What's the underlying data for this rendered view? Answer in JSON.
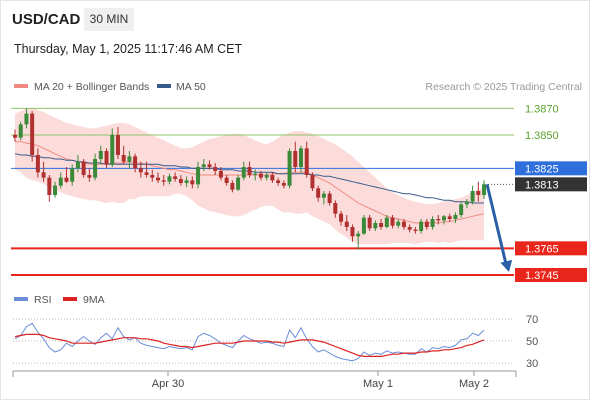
{
  "header": {
    "symbol": "USD/CAD",
    "timeframe": "30 MIN",
    "datetime": "Thursday, May 1, 2025 11:17:46 AM CET"
  },
  "colors": {
    "support": "#e8261c",
    "resistance": "#2f6fdb",
    "target_line": "#8cc36a",
    "target_text": "#5aa12e",
    "price_box": "#333333",
    "candle_up": "#3a8a3a",
    "candle_down": "#b03030",
    "band_fill": "#fbd6d3",
    "ma20": "#f08a80",
    "ma50": "#365a8a",
    "rsi": "#6a8ed8",
    "rsi_ma": "#dd2222",
    "arrow": "#2a5fa8"
  },
  "chart_data": [
    {
      "type": "candlestick",
      "title": "USD/CAD",
      "legend": [
        {
          "name": "MA 20 + Bollinger Bands",
          "color": "#f08a80"
        },
        {
          "name": "MA 50",
          "color": "#365a8a"
        }
      ],
      "copyright": "Research © 2025 Trading Central",
      "ylim": [
        1.3733,
        1.3883
      ],
      "levels": [
        {
          "value": "1.3870",
          "kind": "target"
        },
        {
          "value": "1.3850",
          "kind": "target"
        },
        {
          "value": "1.3825",
          "kind": "resistance"
        },
        {
          "value": "1.3813",
          "kind": "last"
        },
        {
          "value": "1.3765",
          "kind": "support"
        },
        {
          "value": "1.3745",
          "kind": "support"
        }
      ],
      "x_ticks": [
        "Apr 30",
        "May 1",
        "May 2"
      ],
      "candles": [
        [
          1.385,
          1.3854,
          1.3845,
          1.3848
        ],
        [
          1.3848,
          1.386,
          1.3846,
          1.3858
        ],
        [
          1.3858,
          1.387,
          1.3855,
          1.3866
        ],
        [
          1.3866,
          1.3868,
          1.383,
          1.3835
        ],
        [
          1.3835,
          1.384,
          1.3818,
          1.3822
        ],
        [
          1.3822,
          1.383,
          1.3815,
          1.3818
        ],
        [
          1.3818,
          1.382,
          1.38,
          1.3805
        ],
        [
          1.3805,
          1.3815,
          1.3803,
          1.3812
        ],
        [
          1.3812,
          1.3822,
          1.381,
          1.3818
        ],
        [
          1.3818,
          1.3826,
          1.3814,
          1.3815
        ],
        [
          1.3815,
          1.3828,
          1.3812,
          1.3825
        ],
        [
          1.3825,
          1.3835,
          1.3822,
          1.383
        ],
        [
          1.383,
          1.3832,
          1.3818,
          1.382
        ],
        [
          1.382,
          1.3825,
          1.3815,
          1.3818
        ],
        [
          1.3818,
          1.3836,
          1.3816,
          1.3832
        ],
        [
          1.3832,
          1.3842,
          1.3828,
          1.3838
        ],
        [
          1.3838,
          1.384,
          1.3825,
          1.3828
        ],
        [
          1.3828,
          1.3855,
          1.3826,
          1.385
        ],
        [
          1.385,
          1.3856,
          1.3832,
          1.3835
        ],
        [
          1.3835,
          1.3842,
          1.3828,
          1.383
        ],
        [
          1.383,
          1.3838,
          1.3825,
          1.3834
        ],
        [
          1.3834,
          1.3836,
          1.3822,
          1.3825
        ],
        [
          1.3825,
          1.383,
          1.3818,
          1.3822
        ],
        [
          1.3822,
          1.383,
          1.3818,
          1.382
        ],
        [
          1.382,
          1.3824,
          1.3815,
          1.3818
        ],
        [
          1.3818,
          1.3822,
          1.3814,
          1.3816
        ],
        [
          1.3816,
          1.382,
          1.3812,
          1.3815
        ],
        [
          1.3815,
          1.3821,
          1.3813,
          1.3819
        ],
        [
          1.3819,
          1.3822,
          1.3815,
          1.3817
        ],
        [
          1.3817,
          1.382,
          1.3812,
          1.3814
        ],
        [
          1.3814,
          1.3819,
          1.3811,
          1.3816
        ],
        [
          1.3816,
          1.3819,
          1.381,
          1.3813
        ],
        [
          1.3813,
          1.383,
          1.381,
          1.3826
        ],
        [
          1.3826,
          1.3832,
          1.3823,
          1.3828
        ],
        [
          1.3828,
          1.3831,
          1.3824,
          1.3826
        ],
        [
          1.3826,
          1.3829,
          1.382,
          1.3823
        ],
        [
          1.3823,
          1.3826,
          1.3816,
          1.3818
        ],
        [
          1.3818,
          1.382,
          1.3812,
          1.3814
        ],
        [
          1.3814,
          1.3816,
          1.3807,
          1.3809
        ],
        [
          1.3809,
          1.382,
          1.3808,
          1.3818
        ],
        [
          1.3818,
          1.383,
          1.3816,
          1.3826
        ],
        [
          1.3826,
          1.383,
          1.3818,
          1.382
        ],
        [
          1.382,
          1.3824,
          1.3816,
          1.3821
        ],
        [
          1.3821,
          1.3823,
          1.3816,
          1.3818
        ],
        [
          1.3818,
          1.3822,
          1.3816,
          1.382
        ],
        [
          1.382,
          1.3822,
          1.3814,
          1.3816
        ],
        [
          1.3816,
          1.3818,
          1.3812,
          1.3814
        ],
        [
          1.3814,
          1.3816,
          1.381,
          1.3812
        ],
        [
          1.3812,
          1.384,
          1.381,
          1.3838
        ],
        [
          1.3838,
          1.3845,
          1.3822,
          1.3826
        ],
        [
          1.3826,
          1.3842,
          1.3822,
          1.384
        ],
        [
          1.384,
          1.3845,
          1.3818,
          1.382
        ],
        [
          1.382,
          1.3822,
          1.3808,
          1.381
        ],
        [
          1.381,
          1.3812,
          1.38,
          1.3803
        ],
        [
          1.3803,
          1.3808,
          1.3798,
          1.3806
        ],
        [
          1.3806,
          1.3808,
          1.3797,
          1.3799
        ],
        [
          1.3799,
          1.3801,
          1.3788,
          1.3791
        ],
        [
          1.3791,
          1.3793,
          1.3782,
          1.3785
        ],
        [
          1.3785,
          1.379,
          1.3778,
          1.3781
        ],
        [
          1.3781,
          1.3783,
          1.377,
          1.3774
        ],
        [
          1.3774,
          1.3778,
          1.3764,
          1.3776
        ],
        [
          1.3776,
          1.379,
          1.3775,
          1.3788
        ],
        [
          1.3788,
          1.379,
          1.3778,
          1.378
        ],
        [
          1.378,
          1.3786,
          1.3778,
          1.3784
        ],
        [
          1.3784,
          1.3787,
          1.3779,
          1.3781
        ],
        [
          1.3781,
          1.379,
          1.378,
          1.3788
        ],
        [
          1.3788,
          1.379,
          1.378,
          1.3782
        ],
        [
          1.3782,
          1.3787,
          1.378,
          1.3785
        ],
        [
          1.3785,
          1.3787,
          1.3779,
          1.3781
        ],
        [
          1.3781,
          1.3783,
          1.3777,
          1.3779
        ],
        [
          1.3779,
          1.3781,
          1.3776,
          1.3778
        ],
        [
          1.3778,
          1.3787,
          1.3776,
          1.3785
        ],
        [
          1.3785,
          1.3787,
          1.3779,
          1.3781
        ],
        [
          1.3781,
          1.3789,
          1.3779,
          1.3787
        ],
        [
          1.3787,
          1.379,
          1.3783,
          1.3786
        ],
        [
          1.3786,
          1.379,
          1.3783,
          1.3789
        ],
        [
          1.3789,
          1.3791,
          1.3785,
          1.3787
        ],
        [
          1.3787,
          1.3792,
          1.3784,
          1.379
        ],
        [
          1.379,
          1.38,
          1.3788,
          1.3798
        ],
        [
          1.3798,
          1.3802,
          1.3795,
          1.38
        ],
        [
          1.38,
          1.3812,
          1.3798,
          1.3808
        ],
        [
          1.3808,
          1.3815,
          1.38,
          1.3805
        ],
        [
          1.3805,
          1.3816,
          1.3802,
          1.3813
        ]
      ],
      "ma20": [
        1.3845,
        1.3845,
        1.3844,
        1.3843,
        1.3842,
        1.384,
        1.3838,
        1.3836,
        1.3834,
        1.3832,
        1.3831,
        1.383,
        1.3829,
        1.3828,
        1.3828,
        1.3828,
        1.3828,
        1.3829,
        1.3829,
        1.3829,
        1.383,
        1.3829,
        1.3829,
        1.3828,
        1.3827,
        1.3826,
        1.3825,
        1.3824,
        1.3824,
        1.3823,
        1.3822,
        1.3821,
        1.382,
        1.382,
        1.382,
        1.382,
        1.382,
        1.382,
        1.382,
        1.382,
        1.382,
        1.382,
        1.382,
        1.382,
        1.382,
        1.3821,
        1.3821,
        1.3821,
        1.3822,
        1.3822,
        1.3822,
        1.3822,
        1.382,
        1.3818,
        1.3816,
        1.3814,
        1.3811,
        1.3808,
        1.3805,
        1.3802,
        1.3799,
        1.3797,
        1.3795,
        1.3793,
        1.3791,
        1.3789,
        1.3788,
        1.3787,
        1.3786,
        1.3785,
        1.3784,
        1.3784,
        1.3784,
        1.3784,
        1.3784,
        1.3785,
        1.3785,
        1.3786,
        1.3787,
        1.3788,
        1.3789,
        1.379,
        1.3791
      ],
      "upper_band": [
        1.3866,
        1.3868,
        1.387,
        1.387,
        1.3869,
        1.3867,
        1.3865,
        1.3863,
        1.3861,
        1.3859,
        1.3858,
        1.3857,
        1.3856,
        1.3855,
        1.3855,
        1.3856,
        1.3857,
        1.3858,
        1.3859,
        1.3859,
        1.3858,
        1.3856,
        1.3854,
        1.3852,
        1.385,
        1.3848,
        1.3846,
        1.3844,
        1.3842,
        1.384,
        1.384,
        1.3841,
        1.3843,
        1.3845,
        1.3847,
        1.3848,
        1.3849,
        1.385,
        1.3851,
        1.3851,
        1.385,
        1.3848,
        1.3846,
        1.3844,
        1.3843,
        1.3845,
        1.3848,
        1.385,
        1.3852,
        1.3853,
        1.3853,
        1.3852,
        1.3851,
        1.3849,
        1.3847,
        1.3845,
        1.3843,
        1.384,
        1.3837,
        1.3834,
        1.383,
        1.3826,
        1.3822,
        1.3818,
        1.3814,
        1.381,
        1.3807,
        1.3805,
        1.3803,
        1.3801,
        1.38,
        1.3799,
        1.3798,
        1.3798,
        1.3799,
        1.38,
        1.3801,
        1.3802,
        1.3803,
        1.3805,
        1.3807,
        1.3809,
        1.3811
      ],
      "lower_band": [
        1.3824,
        1.3822,
        1.3818,
        1.3816,
        1.3815,
        1.3813,
        1.3811,
        1.3809,
        1.3807,
        1.3805,
        1.3804,
        1.3803,
        1.3802,
        1.3801,
        1.3801,
        1.38,
        1.3799,
        1.38,
        1.3799,
        1.3799,
        1.3802,
        1.3802,
        1.3804,
        1.3804,
        1.3804,
        1.3804,
        1.3804,
        1.3804,
        1.3806,
        1.3806,
        1.3804,
        1.3801,
        1.3797,
        1.3795,
        1.3793,
        1.3792,
        1.3791,
        1.379,
        1.3789,
        1.3789,
        1.379,
        1.3792,
        1.3794,
        1.3796,
        1.3797,
        1.3797,
        1.3794,
        1.3792,
        1.3792,
        1.3791,
        1.3791,
        1.3792,
        1.3789,
        1.3787,
        1.3785,
        1.3783,
        1.3779,
        1.3776,
        1.3773,
        1.377,
        1.3768,
        1.3768,
        1.3768,
        1.3768,
        1.3768,
        1.3768,
        1.3769,
        1.3769,
        1.3769,
        1.3769,
        1.3768,
        1.3769,
        1.377,
        1.377,
        1.3769,
        1.377,
        1.3769,
        1.377,
        1.3771,
        1.3771,
        1.3771,
        1.3771,
        1.3771
      ],
      "ma50": [
        1.3836,
        1.3835,
        1.3835,
        1.3834,
        1.3834,
        1.3833,
        1.3833,
        1.3832,
        1.3832,
        1.3831,
        1.3831,
        1.383,
        1.383,
        1.3829,
        1.3829,
        1.3829,
        1.3828,
        1.3828,
        1.3828,
        1.3828,
        1.3828,
        1.3828,
        1.3828,
        1.3828,
        1.3828,
        1.3828,
        1.3827,
        1.3827,
        1.3827,
        1.3826,
        1.3826,
        1.3825,
        1.3825,
        1.3825,
        1.3825,
        1.3825,
        1.3824,
        1.3824,
        1.3824,
        1.3823,
        1.3823,
        1.3823,
        1.3822,
        1.3822,
        1.3822,
        1.3822,
        1.3821,
        1.3821,
        1.3821,
        1.3821,
        1.3821,
        1.3821,
        1.382,
        1.382,
        1.3819,
        1.3819,
        1.3818,
        1.3817,
        1.3816,
        1.3815,
        1.3814,
        1.3813,
        1.3812,
        1.3811,
        1.381,
        1.3809,
        1.3808,
        1.3807,
        1.3806,
        1.3806,
        1.3805,
        1.3804,
        1.3803,
        1.3803,
        1.3802,
        1.3801,
        1.3801,
        1.38,
        1.38,
        1.38,
        1.3799,
        1.3799,
        1.3799
      ]
    },
    {
      "type": "line",
      "legend": [
        {
          "name": "RSI",
          "color": "#6a8ed8"
        },
        {
          "name": "9MA",
          "color": "#dd2222"
        }
      ],
      "ylim": [
        20,
        80
      ],
      "y_ticks": [
        "70",
        "50",
        "30"
      ],
      "series": [
        {
          "name": "RSI",
          "values": [
            52,
            55,
            63,
            66,
            58,
            52,
            44,
            40,
            42,
            48,
            45,
            50,
            54,
            50,
            47,
            53,
            57,
            52,
            62,
            54,
            51,
            53,
            48,
            46,
            45,
            44,
            43,
            45,
            44,
            43,
            44,
            42,
            54,
            57,
            55,
            52,
            48,
            46,
            44,
            50,
            55,
            52,
            50,
            48,
            49,
            48,
            46,
            45,
            60,
            53,
            62,
            52,
            45,
            40,
            42,
            39,
            36,
            34,
            33,
            32,
            34,
            40,
            37,
            39,
            38,
            41,
            39,
            40,
            39,
            38,
            38,
            43,
            40,
            44,
            43,
            45,
            44,
            46,
            51,
            52,
            57,
            55,
            60
          ]
        },
        {
          "name": "9MA",
          "values": [
            54,
            55,
            56,
            56,
            56,
            55,
            53,
            52,
            51,
            50,
            48,
            48,
            48,
            48,
            48,
            49,
            50,
            51,
            52,
            53,
            53,
            53,
            52,
            52,
            51,
            50,
            48,
            47,
            46,
            45,
            45,
            44,
            45,
            46,
            47,
            48,
            48,
            48,
            48,
            49,
            50,
            50,
            50,
            50,
            50,
            49,
            49,
            48,
            49,
            50,
            51,
            51,
            51,
            50,
            49,
            47,
            45,
            43,
            41,
            39,
            37,
            36,
            36,
            36,
            36,
            37,
            38,
            38,
            39,
            39,
            39,
            40,
            40,
            41,
            41,
            42,
            42,
            43,
            44,
            46,
            47,
            49,
            51
          ]
        }
      ]
    }
  ]
}
